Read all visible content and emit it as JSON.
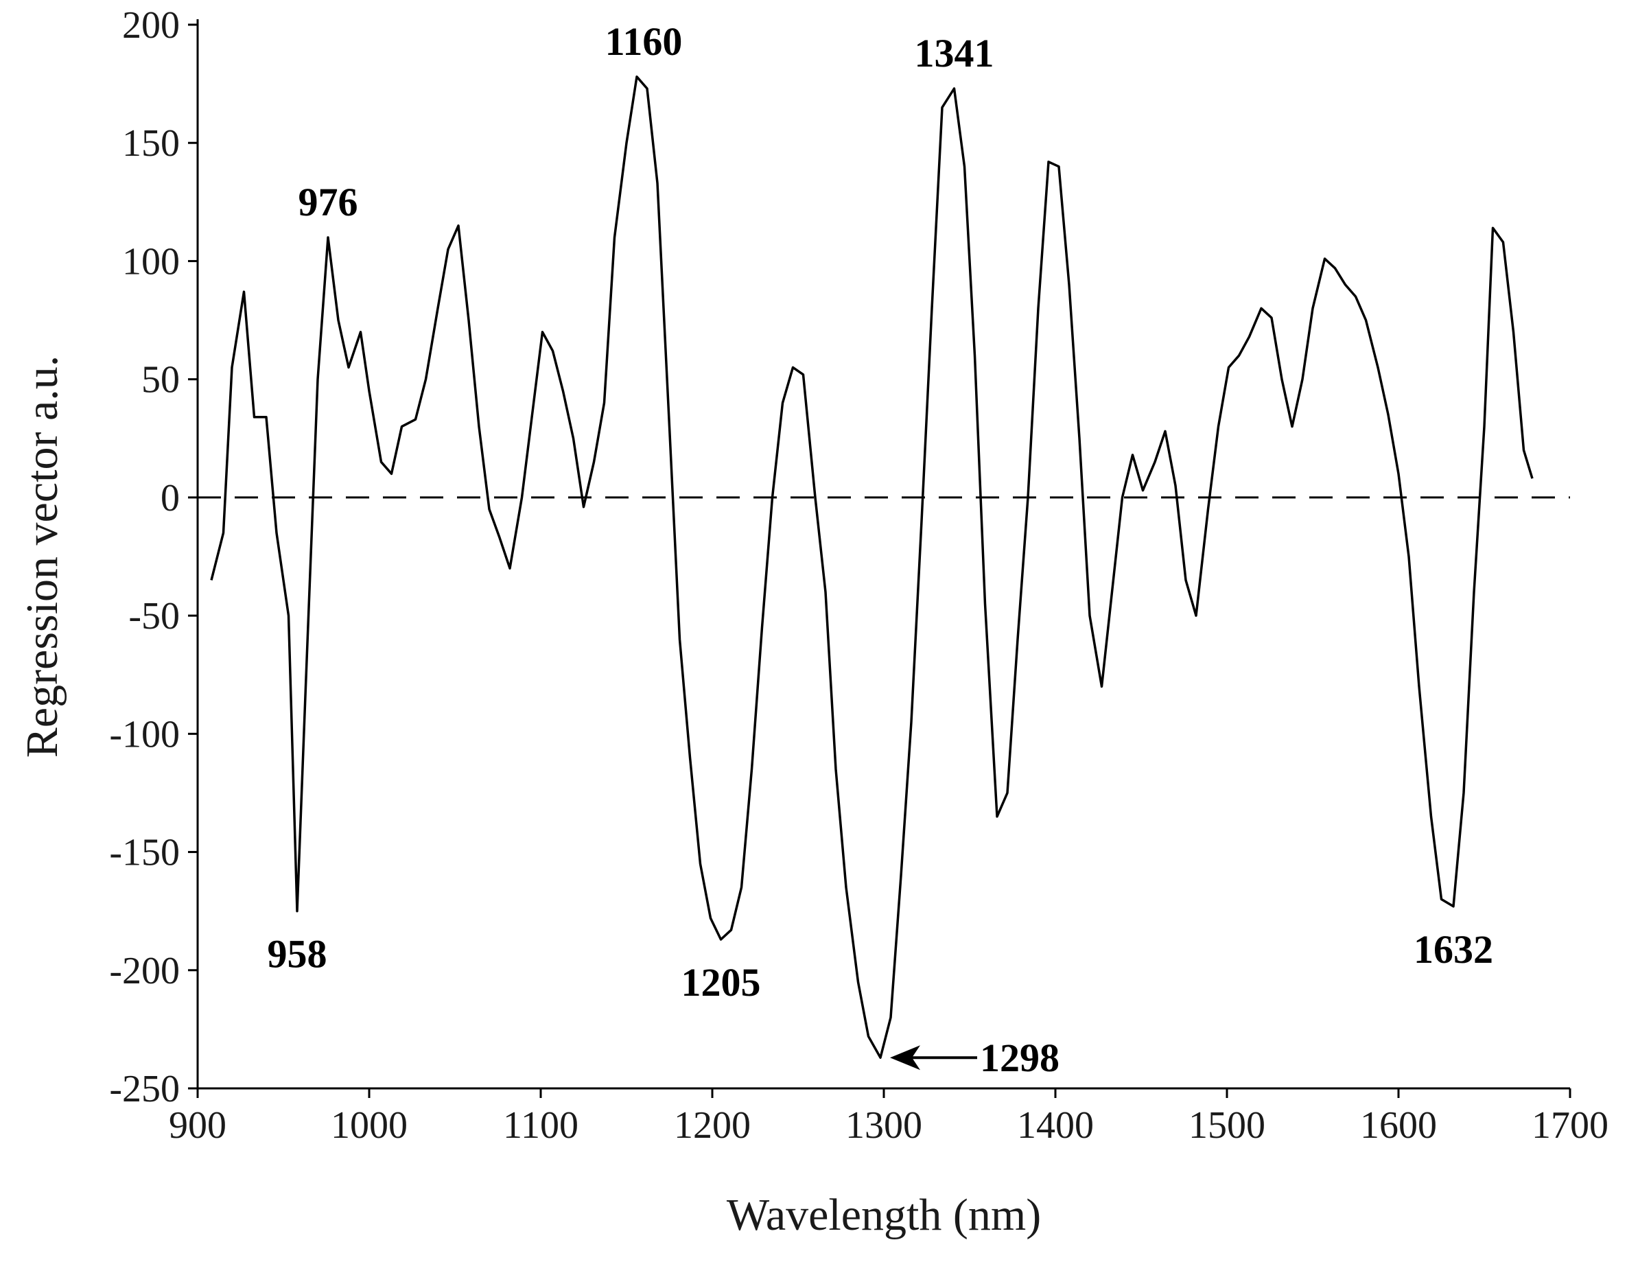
{
  "chart_data": {
    "type": "line",
    "xlabel": "Wavelength (nm)",
    "ylabel": "Regression vector a.u.",
    "xlim": [
      900,
      1700
    ],
    "ylim": [
      -250,
      200
    ],
    "xticks": [
      900,
      1000,
      1100,
      1200,
      1300,
      1400,
      1500,
      1600,
      1700
    ],
    "yticks": [
      200,
      150,
      100,
      50,
      0,
      -50,
      -100,
      -150,
      -200,
      -250
    ],
    "grid": false,
    "reference_line": {
      "y": 0,
      "style": "dashed"
    },
    "series": [
      {
        "points": [
          [
            908,
            -35
          ],
          [
            915,
            -15
          ],
          [
            920,
            55
          ],
          [
            927,
            87
          ],
          [
            933,
            34
          ],
          [
            940,
            34
          ],
          [
            946,
            -15
          ],
          [
            953,
            -50
          ],
          [
            958,
            -175
          ],
          [
            963,
            -80
          ],
          [
            970,
            50
          ],
          [
            976,
            110
          ],
          [
            982,
            75
          ],
          [
            988,
            55
          ],
          [
            995,
            70
          ],
          [
            1000,
            45
          ],
          [
            1007,
            15
          ],
          [
            1013,
            10
          ],
          [
            1019,
            30
          ],
          [
            1027,
            33
          ],
          [
            1033,
            50
          ],
          [
            1040,
            80
          ],
          [
            1046,
            105
          ],
          [
            1052,
            115
          ],
          [
            1058,
            75
          ],
          [
            1064,
            30
          ],
          [
            1070,
            -5
          ],
          [
            1076,
            -17
          ],
          [
            1082,
            -30
          ],
          [
            1089,
            0
          ],
          [
            1095,
            35
          ],
          [
            1101,
            70
          ],
          [
            1107,
            62
          ],
          [
            1113,
            45
          ],
          [
            1119,
            25
          ],
          [
            1125,
            -4
          ],
          [
            1131,
            15
          ],
          [
            1137,
            40
          ],
          [
            1143,
            110
          ],
          [
            1150,
            150
          ],
          [
            1156,
            178
          ],
          [
            1162,
            173
          ],
          [
            1168,
            133
          ],
          [
            1175,
            30
          ],
          [
            1181,
            -60
          ],
          [
            1187,
            -110
          ],
          [
            1193,
            -155
          ],
          [
            1199,
            -178
          ],
          [
            1205,
            -187
          ],
          [
            1211,
            -183
          ],
          [
            1217,
            -165
          ],
          [
            1223,
            -115
          ],
          [
            1229,
            -55
          ],
          [
            1235,
            0
          ],
          [
            1241,
            40
          ],
          [
            1247,
            55
          ],
          [
            1253,
            52
          ],
          [
            1260,
            0
          ],
          [
            1266,
            -40
          ],
          [
            1272,
            -115
          ],
          [
            1278,
            -165
          ],
          [
            1285,
            -205
          ],
          [
            1291,
            -228
          ],
          [
            1298,
            -237
          ],
          [
            1304,
            -220
          ],
          [
            1310,
            -160
          ],
          [
            1316,
            -95
          ],
          [
            1322,
            -10
          ],
          [
            1328,
            80
          ],
          [
            1334,
            165
          ],
          [
            1341,
            173
          ],
          [
            1347,
            140
          ],
          [
            1353,
            60
          ],
          [
            1359,
            -45
          ],
          [
            1366,
            -135
          ],
          [
            1372,
            -125
          ],
          [
            1378,
            -60
          ],
          [
            1384,
            0
          ],
          [
            1390,
            80
          ],
          [
            1396,
            142
          ],
          [
            1402,
            140
          ],
          [
            1408,
            90
          ],
          [
            1414,
            25
          ],
          [
            1420,
            -50
          ],
          [
            1427,
            -80
          ],
          [
            1433,
            -40
          ],
          [
            1439,
            0
          ],
          [
            1445,
            18
          ],
          [
            1451,
            3
          ],
          [
            1458,
            15
          ],
          [
            1464,
            28
          ],
          [
            1470,
            5
          ],
          [
            1476,
            -35
          ],
          [
            1482,
            -50
          ],
          [
            1489,
            -5
          ],
          [
            1495,
            30
          ],
          [
            1501,
            55
          ],
          [
            1507,
            60
          ],
          [
            1513,
            68
          ],
          [
            1520,
            80
          ],
          [
            1526,
            76
          ],
          [
            1532,
            50
          ],
          [
            1538,
            30
          ],
          [
            1544,
            50
          ],
          [
            1550,
            80
          ],
          [
            1557,
            101
          ],
          [
            1563,
            97
          ],
          [
            1569,
            90
          ],
          [
            1575,
            85
          ],
          [
            1581,
            75
          ],
          [
            1588,
            55
          ],
          [
            1594,
            35
          ],
          [
            1600,
            10
          ],
          [
            1606,
            -25
          ],
          [
            1612,
            -80
          ],
          [
            1619,
            -135
          ],
          [
            1625,
            -170
          ],
          [
            1632,
            -173
          ],
          [
            1638,
            -125
          ],
          [
            1644,
            -40
          ],
          [
            1650,
            30
          ],
          [
            1655,
            114
          ],
          [
            1661,
            108
          ],
          [
            1667,
            70
          ],
          [
            1673,
            20
          ],
          [
            1678,
            8
          ]
        ]
      }
    ],
    "annotations": [
      {
        "text": "976",
        "x": 976,
        "y": 110
      },
      {
        "text": "1160",
        "x": 1160,
        "y": 178
      },
      {
        "text": "1341",
        "x": 1341,
        "y": 173
      },
      {
        "text": "958",
        "x": 958,
        "y": -175
      },
      {
        "text": "1205",
        "x": 1205,
        "y": -187
      },
      {
        "text": "1298",
        "x": 1298,
        "y": -237,
        "arrow": true
      },
      {
        "text": "1632",
        "x": 1632,
        "y": -173
      }
    ]
  }
}
